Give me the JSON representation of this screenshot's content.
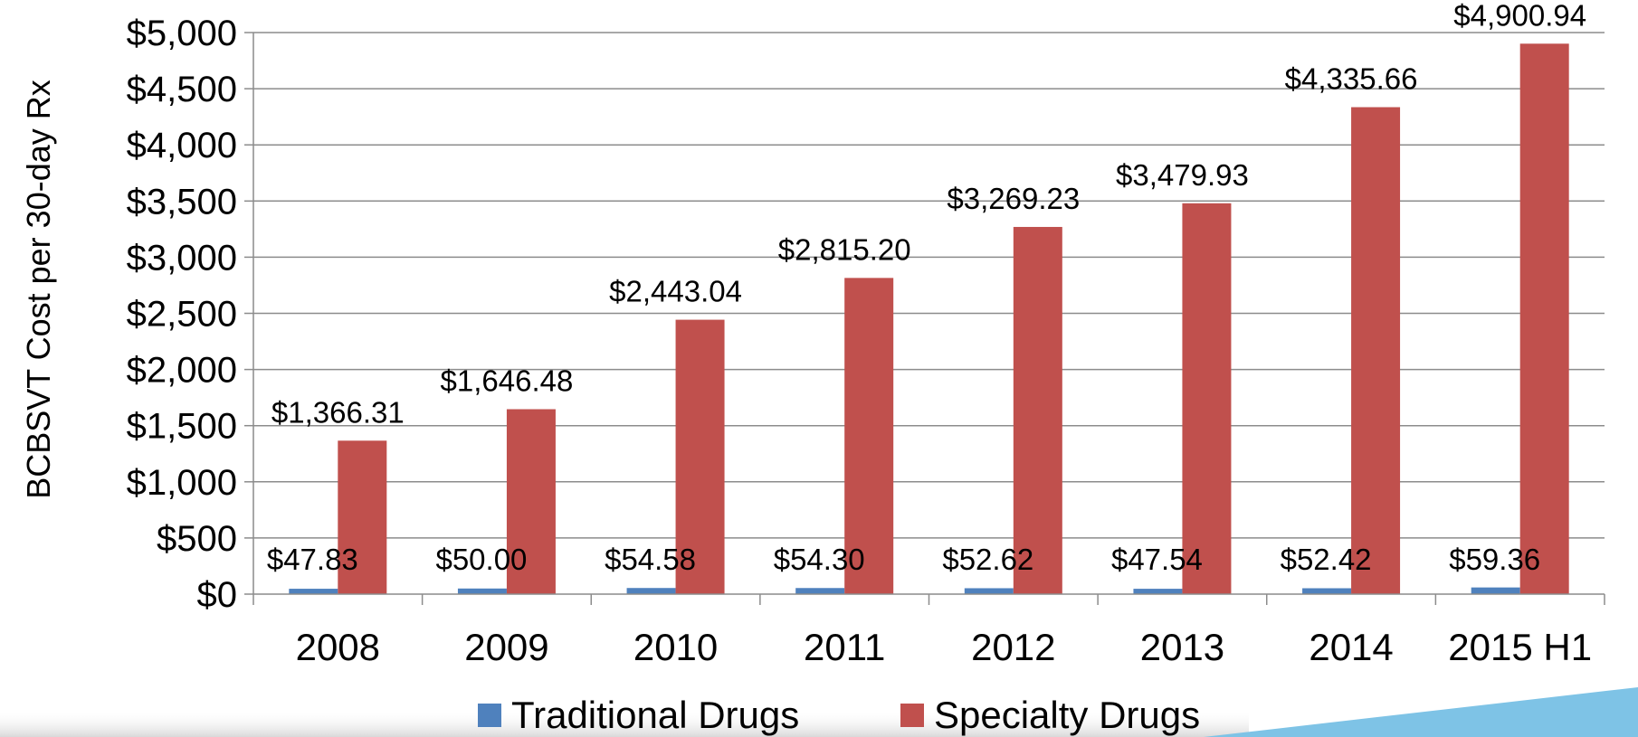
{
  "chart_data": {
    "type": "bar",
    "title": "",
    "xlabel": "",
    "ylabel": "BCBSVT Cost per 30-day Rx",
    "categories": [
      "2008",
      "2009",
      "2010",
      "2011",
      "2012",
      "2013",
      "2014",
      "2015 H1"
    ],
    "series": [
      {
        "name": "Traditional Drugs",
        "color": "#4F81BD",
        "values": [
          47.83,
          50.0,
          54.58,
          54.3,
          52.62,
          47.54,
          52.42,
          59.36
        ],
        "labels": [
          "$47.83",
          "$50.00",
          "$54.58",
          "$54.30",
          "$52.62",
          "$47.54",
          "$52.42",
          "$59.36"
        ]
      },
      {
        "name": "Specialty Drugs",
        "color": "#C0504D",
        "values": [
          1366.31,
          1646.48,
          2443.04,
          2815.2,
          3269.23,
          3479.93,
          4335.66,
          4900.94
        ],
        "labels": [
          "$1,366.31",
          "$1,646.48",
          "$2,443.04",
          "$2,815.20",
          "$3,269.23",
          "$3,479.93",
          "$4,335.66",
          "$4,900.94"
        ]
      }
    ],
    "ylim": [
      0,
      5000
    ],
    "yticks": [
      0,
      500,
      1000,
      1500,
      2000,
      2500,
      3000,
      3500,
      4000,
      4500,
      5000
    ],
    "ytick_labels": [
      "$0",
      "$500",
      "$1,000",
      "$1,500",
      "$2,000",
      "$2,500",
      "$3,000",
      "$3,500",
      "$4,000",
      "$4,500",
      "$5,000"
    ],
    "grid": true,
    "legend_position": "bottom"
  },
  "decor": {
    "accent_color": "#7EC3E6"
  }
}
